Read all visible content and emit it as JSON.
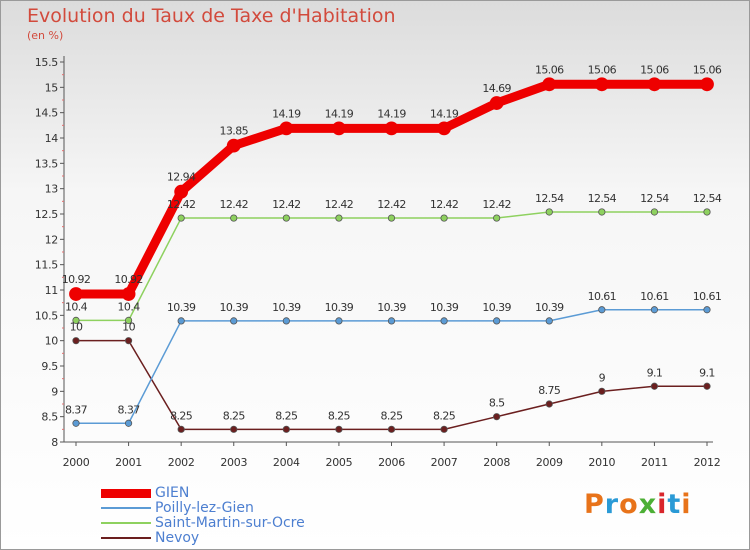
{
  "title": "Evolution du Taux de Taxe d'Habitation",
  "unit": "(en %)",
  "brand": {
    "letters": [
      "P",
      "r",
      "o",
      "x",
      "i",
      "t",
      "i"
    ],
    "colors": [
      "#e8731a",
      "#2a9ad6",
      "#e8731a",
      "#4caf35",
      "#d9262c",
      "#2a9ad6",
      "#e8731a"
    ]
  },
  "chart_data": {
    "type": "line",
    "x": [
      "2000",
      "2001",
      "2002",
      "2003",
      "2004",
      "2005",
      "2006",
      "2007",
      "2008",
      "2009",
      "2010",
      "2011",
      "2012"
    ],
    "ylim": [
      8,
      15.5
    ],
    "yticks": [
      "8",
      "8.5",
      "9",
      "9.5",
      "10",
      "10.5",
      "11",
      "11.5",
      "12",
      "12.5",
      "13",
      "13.5",
      "14",
      "14.5",
      "15",
      "15.5"
    ],
    "grid": false,
    "legend_position": "bottom-left",
    "series": [
      {
        "name": "GIEN",
        "color": "#ee0000",
        "width": 9,
        "values": [
          10.92,
          10.92,
          12.94,
          13.85,
          14.19,
          14.19,
          14.19,
          14.19,
          14.69,
          15.06,
          15.06,
          15.06,
          15.06
        ],
        "labels": [
          "10.92",
          "10.92",
          "12.94",
          "13.85",
          "14.19",
          "14.19",
          "14.19",
          "14.19",
          "14.69",
          "15.06",
          "15.06",
          "15.06",
          "15.06"
        ]
      },
      {
        "name": "Poilly-lez-Gien",
        "color": "#5b9bd5",
        "width": 1.5,
        "values": [
          8.37,
          8.37,
          10.39,
          10.39,
          10.39,
          10.39,
          10.39,
          10.39,
          10.39,
          10.39,
          10.61,
          10.61,
          10.61
        ],
        "labels": [
          "8.37",
          "8.37",
          "10.39",
          "10.39",
          "10.39",
          "10.39",
          "10.39",
          "10.39",
          "10.39",
          "10.39",
          "10.61",
          "10.61",
          "10.61"
        ]
      },
      {
        "name": "Saint-Martin-sur-Ocre",
        "color": "#8ed15f",
        "width": 1.5,
        "values": [
          10.4,
          10.4,
          12.42,
          12.42,
          12.42,
          12.42,
          12.42,
          12.42,
          12.42,
          12.54,
          12.54,
          12.54,
          12.54
        ],
        "labels": [
          "10.4",
          "10.4",
          "12.42",
          "12.42",
          "12.42",
          "12.42",
          "12.42",
          "12.42",
          "12.42",
          "12.54",
          "12.54",
          "12.54",
          "12.54"
        ]
      },
      {
        "name": "Nevoy",
        "color": "#6b1f1f",
        "width": 1.5,
        "values": [
          10,
          10,
          8.25,
          8.25,
          8.25,
          8.25,
          8.25,
          8.25,
          8.5,
          8.75,
          9,
          9.1,
          9.1
        ],
        "labels": [
          "10",
          "10",
          "8.25",
          "8.25",
          "8.25",
          "8.25",
          "8.25",
          "8.25",
          "8.5",
          "8.75",
          "9",
          "9.1",
          "9.1"
        ]
      }
    ]
  }
}
